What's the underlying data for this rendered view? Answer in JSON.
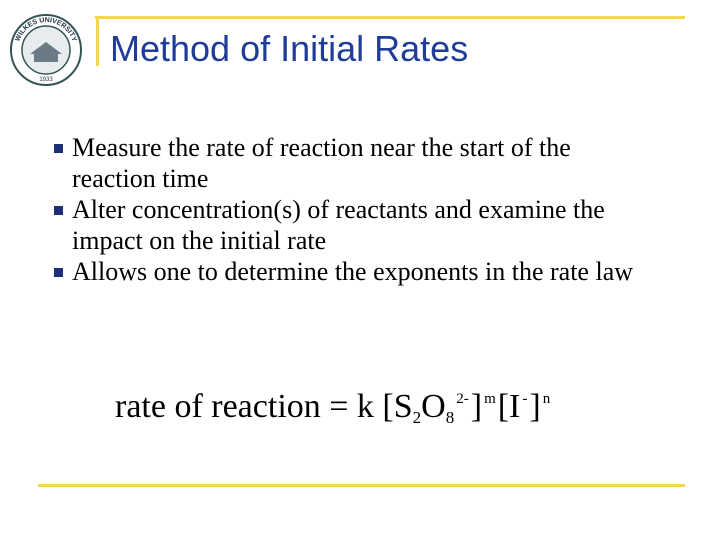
{
  "logo": {
    "name": "WILKES UNIVERSITY",
    "year": "1933"
  },
  "title": "Method of Initial Rates",
  "bullets": [
    "Measure the rate of reaction near the start of the reaction time",
    "Alter concentration(s) of reactants and examine the impact on the initial rate",
    "Allows one to determine the exponents in the rate law"
  ],
  "equation": [
    {
      "text": "rate of reaction = k [S",
      "pos": "base"
    },
    {
      "text": "2",
      "pos": "sub"
    },
    {
      "text": "O",
      "pos": "base"
    },
    {
      "text": "8",
      "pos": "sub"
    },
    {
      "text": "2-",
      "pos": "sup"
    },
    {
      "text": "]",
      "pos": "base"
    },
    {
      "text": "m",
      "pos": "sup"
    },
    {
      "text": "[I",
      "pos": "base"
    },
    {
      "text": "-",
      "pos": "sup"
    },
    {
      "text": "]",
      "pos": "base"
    },
    {
      "text": "n",
      "pos": "sup"
    }
  ]
}
